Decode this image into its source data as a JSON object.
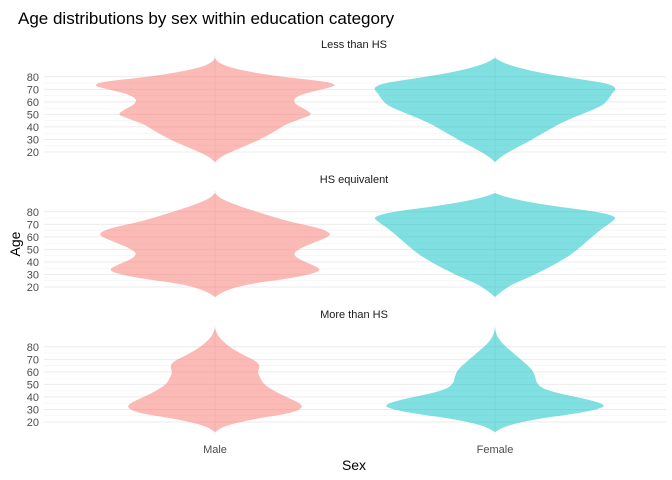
{
  "chart_data": {
    "type": "violin",
    "title": "Age distributions by sex within education category",
    "xlabel": "Sex",
    "ylabel": "Age",
    "categories": [
      "Male",
      "Female"
    ],
    "ylim": [
      12,
      95
    ],
    "yticks": [
      20,
      30,
      40,
      50,
      60,
      70,
      80
    ],
    "grid": true,
    "legend": "none",
    "colors": {
      "Male": "#F8766D",
      "Female": "#00BFC4"
    },
    "fill_opacity": 0.5,
    "panels": [
      {
        "label": "Less than HS",
        "violins": [
          {
            "sex": "Male",
            "density": [
              [
                12,
                0
              ],
              [
                17,
                0.06
              ],
              [
                22,
                0.18
              ],
              [
                27,
                0.3
              ],
              [
                32,
                0.41
              ],
              [
                37,
                0.5
              ],
              [
                42,
                0.58
              ],
              [
                47,
                0.72
              ],
              [
                50,
                0.8
              ],
              [
                54,
                0.74
              ],
              [
                58,
                0.66
              ],
              [
                62,
                0.64
              ],
              [
                66,
                0.71
              ],
              [
                70,
                0.88
              ],
              [
                73,
                1.0
              ],
              [
                76,
                0.93
              ],
              [
                80,
                0.54
              ],
              [
                84,
                0.28
              ],
              [
                88,
                0.1
              ],
              [
                92,
                0.02
              ],
              [
                95,
                0
              ]
            ]
          },
          {
            "sex": "Female",
            "density": [
              [
                12,
                0
              ],
              [
                17,
                0.06
              ],
              [
                22,
                0.15
              ],
              [
                27,
                0.25
              ],
              [
                32,
                0.34
              ],
              [
                37,
                0.43
              ],
              [
                42,
                0.52
              ],
              [
                47,
                0.63
              ],
              [
                52,
                0.76
              ],
              [
                57,
                0.88
              ],
              [
                62,
                0.93
              ],
              [
                67,
                0.96
              ],
              [
                71,
                1.0
              ],
              [
                75,
                0.92
              ],
              [
                79,
                0.63
              ],
              [
                83,
                0.38
              ],
              [
                87,
                0.2
              ],
              [
                91,
                0.07
              ],
              [
                95,
                0
              ]
            ]
          }
        ]
      },
      {
        "label": "HS equivalent",
        "violins": [
          {
            "sex": "Male",
            "density": [
              [
                12,
                0
              ],
              [
                17,
                0.08
              ],
              [
                22,
                0.25
              ],
              [
                27,
                0.62
              ],
              [
                31,
                0.82
              ],
              [
                34,
                0.87
              ],
              [
                38,
                0.79
              ],
              [
                42,
                0.69
              ],
              [
                46,
                0.64
              ],
              [
                50,
                0.68
              ],
              [
                55,
                0.8
              ],
              [
                60,
                0.93
              ],
              [
                63,
                0.95
              ],
              [
                67,
                0.86
              ],
              [
                72,
                0.62
              ],
              [
                77,
                0.44
              ],
              [
                82,
                0.28
              ],
              [
                87,
                0.13
              ],
              [
                91,
                0.04
              ],
              [
                95,
                0
              ]
            ]
          },
          {
            "sex": "Female",
            "density": [
              [
                12,
                0
              ],
              [
                17,
                0.06
              ],
              [
                22,
                0.14
              ],
              [
                27,
                0.26
              ],
              [
                32,
                0.37
              ],
              [
                37,
                0.47
              ],
              [
                42,
                0.56
              ],
              [
                47,
                0.64
              ],
              [
                52,
                0.7
              ],
              [
                57,
                0.76
              ],
              [
                62,
                0.82
              ],
              [
                67,
                0.88
              ],
              [
                72,
                0.96
              ],
              [
                76,
                1.0
              ],
              [
                80,
                0.84
              ],
              [
                84,
                0.52
              ],
              [
                88,
                0.26
              ],
              [
                92,
                0.08
              ],
              [
                95,
                0
              ]
            ]
          }
        ]
      },
      {
        "label": "More than HS",
        "violins": [
          {
            "sex": "Male",
            "density": [
              [
                12,
                0
              ],
              [
                17,
                0.08
              ],
              [
                22,
                0.3
              ],
              [
                27,
                0.62
              ],
              [
                31,
                0.72
              ],
              [
                35,
                0.7
              ],
              [
                40,
                0.58
              ],
              [
                45,
                0.48
              ],
              [
                50,
                0.4
              ],
              [
                55,
                0.37
              ],
              [
                60,
                0.35
              ],
              [
                65,
                0.37
              ],
              [
                69,
                0.33
              ],
              [
                73,
                0.24
              ],
              [
                78,
                0.15
              ],
              [
                83,
                0.08
              ],
              [
                88,
                0.03
              ],
              [
                92,
                0.01
              ],
              [
                95,
                0
              ]
            ]
          },
          {
            "sex": "Female",
            "density": [
              [
                12,
                0
              ],
              [
                17,
                0.09
              ],
              [
                22,
                0.32
              ],
              [
                27,
                0.68
              ],
              [
                31,
                0.88
              ],
              [
                34,
                0.9
              ],
              [
                38,
                0.76
              ],
              [
                42,
                0.56
              ],
              [
                46,
                0.4
              ],
              [
                51,
                0.34
              ],
              [
                56,
                0.33
              ],
              [
                61,
                0.31
              ],
              [
                65,
                0.27
              ],
              [
                70,
                0.21
              ],
              [
                75,
                0.15
              ],
              [
                80,
                0.09
              ],
              [
                85,
                0.04
              ],
              [
                90,
                0.01
              ],
              [
                95,
                0
              ]
            ]
          }
        ]
      }
    ]
  }
}
